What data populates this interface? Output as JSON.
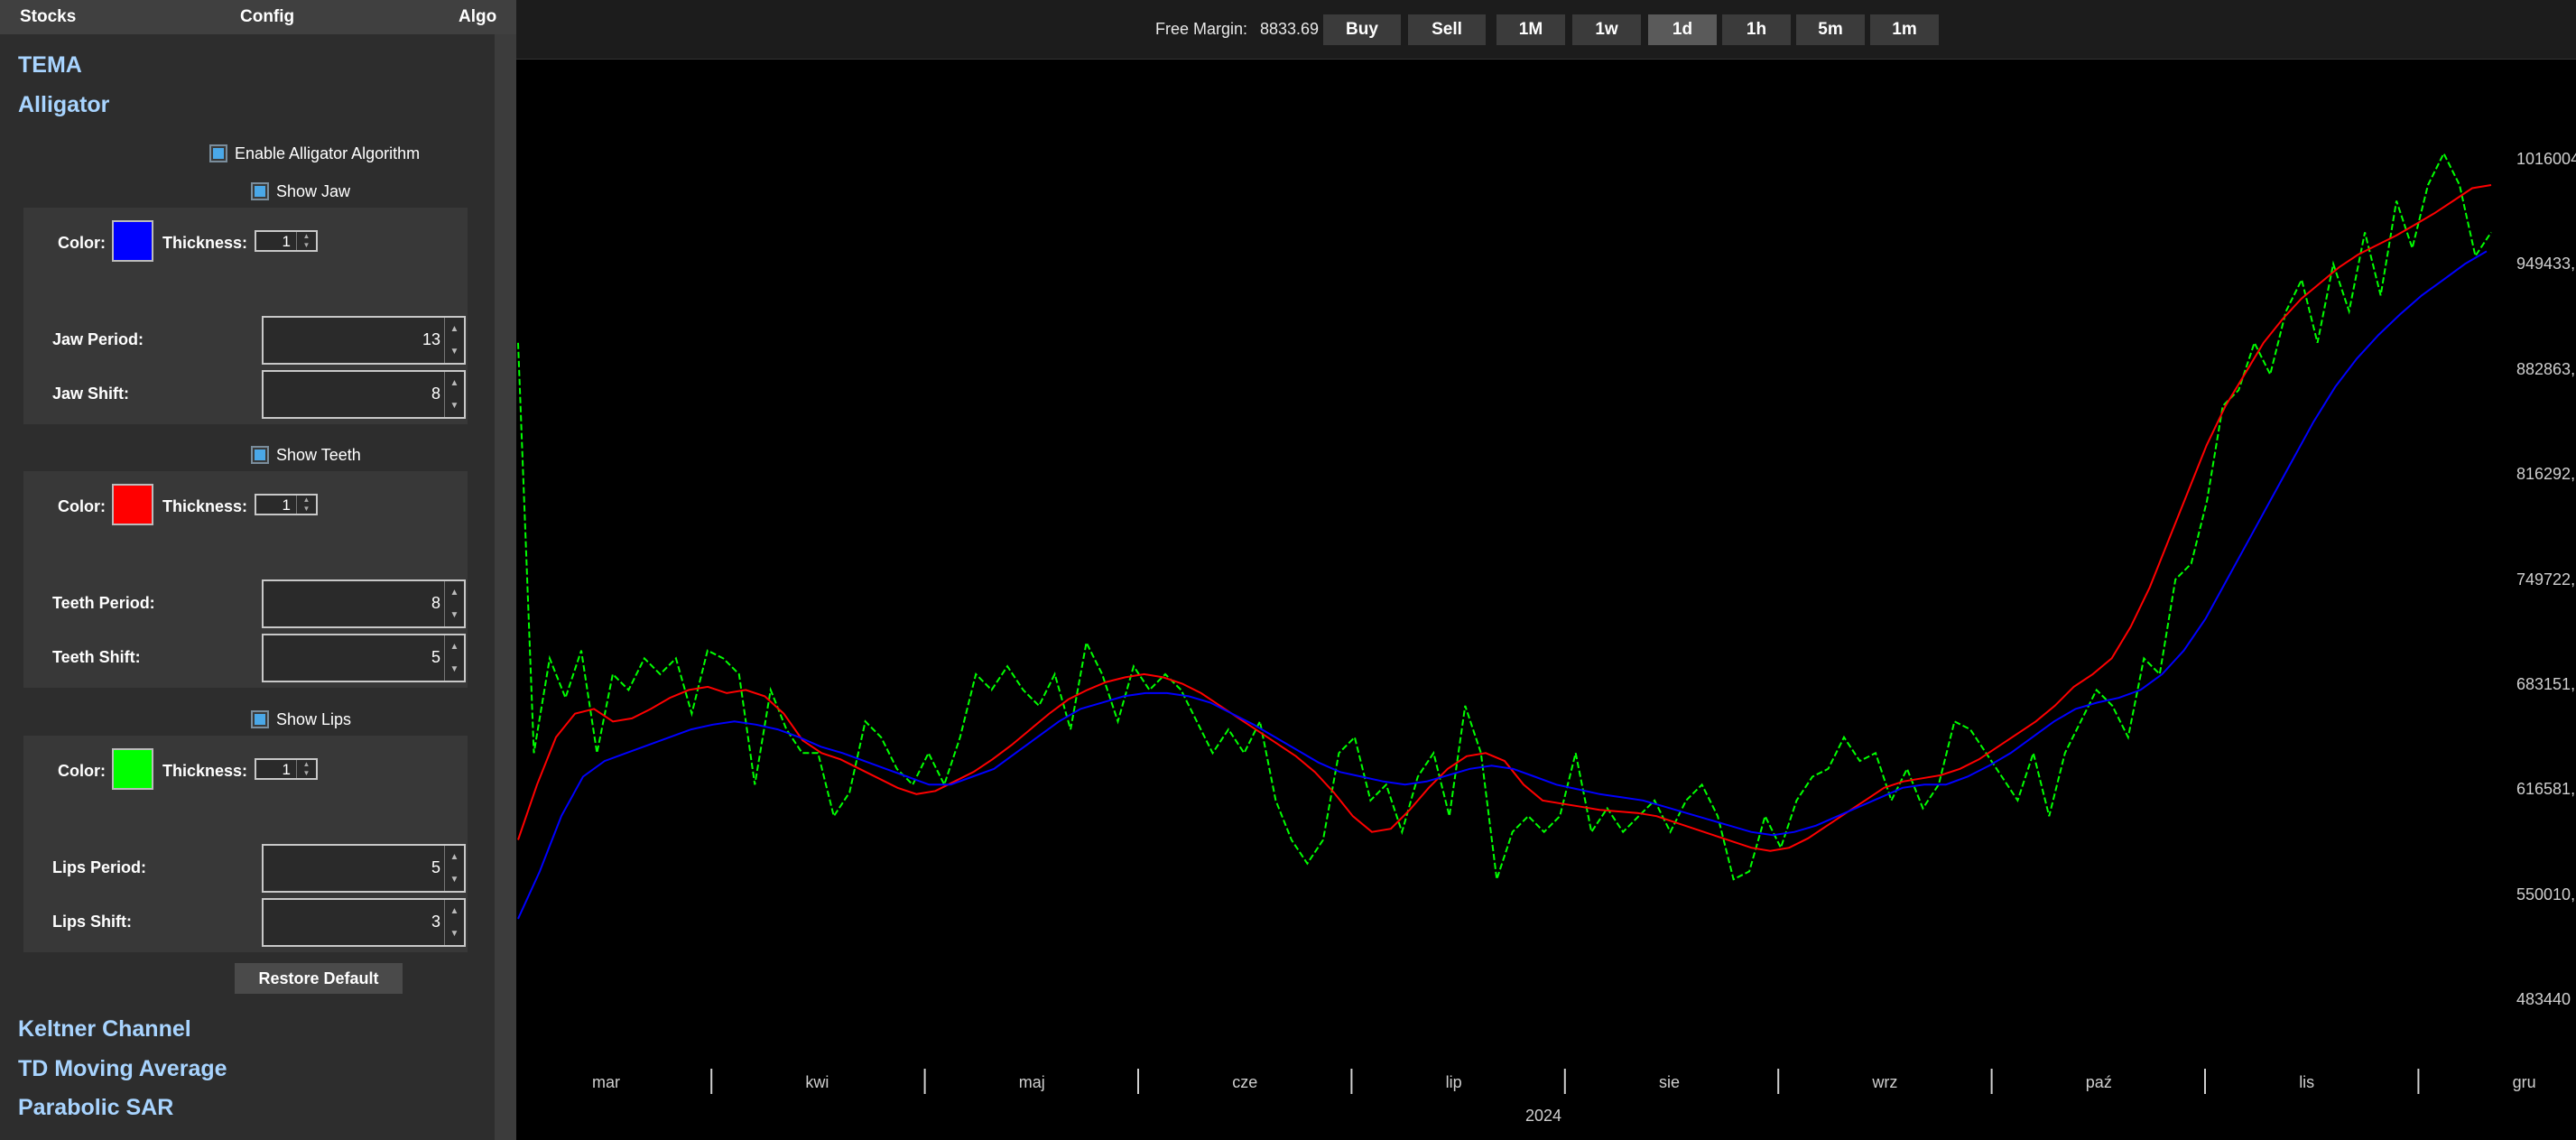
{
  "sidebar": {
    "tabs": [
      {
        "name": "stocks",
        "label": "Stocks"
      },
      {
        "name": "config",
        "label": "Config"
      },
      {
        "name": "algo",
        "label": "Algo"
      }
    ],
    "sections_top": [
      "TEMA",
      "Alligator"
    ],
    "enable_label": "Enable Alligator Algorithm",
    "groups": [
      {
        "show_label": "Show Jaw",
        "color_label": "Color:",
        "color": "#0000ff",
        "thickness_label": "Thickness:",
        "thickness": "1",
        "period_label": "Jaw Period:",
        "period": "13",
        "shift_label": "Jaw Shift:",
        "shift": "8"
      },
      {
        "show_label": "Show Teeth",
        "color_label": "Color:",
        "color": "#ff0000",
        "thickness_label": "Thickness:",
        "thickness": "1",
        "period_label": "Teeth Period:",
        "period": "8",
        "shift_label": "Teeth Shift:",
        "shift": "5"
      },
      {
        "show_label": "Show Lips",
        "color_label": "Color:",
        "color": "#00ff00",
        "thickness_label": "Thickness:",
        "thickness": "1",
        "period_label": "Lips Period:",
        "period": "5",
        "shift_label": "Lips Shift:",
        "shift": "3"
      }
    ],
    "restore_label": "Restore Default",
    "sections_bottom": [
      "Keltner Channel",
      "TD Moving Average",
      "Parabolic SAR"
    ]
  },
  "topbar": {
    "free_margin_label": "Free Margin:",
    "free_margin_value": "8833.69",
    "buy_label": "Buy",
    "sell_label": "Sell",
    "timeframes": [
      "1M",
      "1w",
      "1d",
      "1h",
      "5m",
      "1m"
    ],
    "active_timeframe": "1d"
  },
  "chart_data": {
    "type": "line",
    "y_ticks": [
      "1016004",
      "949433,",
      "882863,",
      "816292,",
      "749722,",
      "683151,",
      "616581,",
      "550010,",
      "483440"
    ],
    "ylim": [
      483440,
      1016004
    ],
    "x_ticks": [
      "mar",
      "kwi",
      "maj",
      "cze",
      "lip",
      "sie",
      "wrz",
      "paź",
      "lis",
      "gru"
    ],
    "xlabel": "2024",
    "grid": false,
    "series": [
      {
        "color": "#00ff00",
        "style": "dashed",
        "values": [
          900000,
          640000,
          700000,
          675000,
          705000,
          640000,
          690000,
          680000,
          700000,
          690000,
          700000,
          665000,
          705000,
          700000,
          690000,
          620000,
          680000,
          655000,
          640000,
          640000,
          600000,
          615000,
          660000,
          650000,
          630000,
          620000,
          640000,
          620000,
          650000,
          690000,
          680000,
          695000,
          680000,
          670000,
          690000,
          655000,
          710000,
          690000,
          660000,
          695000,
          680000,
          690000,
          680000,
          660000,
          640000,
          655000,
          640000,
          660000,
          610000,
          585000,
          570000,
          585000,
          640000,
          650000,
          610000,
          620000,
          590000,
          625000,
          640000,
          600000,
          670000,
          640000,
          560000,
          590000,
          600000,
          590000,
          600000,
          640000,
          590000,
          605000,
          590000,
          600000,
          610000,
          590000,
          610000,
          620000,
          600000,
          560000,
          565000,
          600000,
          580000,
          610000,
          625000,
          630000,
          650000,
          635000,
          640000,
          610000,
          630000,
          605000,
          620000,
          660000,
          655000,
          640000,
          625000,
          610000,
          640000,
          600000,
          640000,
          660000,
          680000,
          670000,
          650000,
          700000,
          690000,
          750000,
          760000,
          800000,
          860000,
          870000,
          900000,
          880000,
          920000,
          940000,
          900000,
          950000,
          920000,
          970000,
          930000,
          990000,
          960000,
          1000000,
          1020000,
          1000000,
          955000,
          970000
        ]
      },
      {
        "color": "#ff0000",
        "style": "solid",
        "values": [
          585000,
          620000,
          650000,
          665000,
          668000,
          660000,
          662000,
          668000,
          675000,
          680000,
          682000,
          678000,
          680000,
          676000,
          665000,
          648000,
          640000,
          636000,
          630000,
          624000,
          618000,
          614000,
          616000,
          622000,
          628000,
          636000,
          645000,
          655000,
          665000,
          674000,
          680000,
          685000,
          688000,
          690000,
          688000,
          684000,
          678000,
          670000,
          662000,
          654000,
          646000,
          638000,
          628000,
          615000,
          600000,
          590000,
          592000,
          604000,
          618000,
          630000,
          638000,
          640000,
          635000,
          620000,
          610000,
          608000,
          606000,
          604000,
          603000,
          602000,
          600000,
          596000,
          592000,
          588000,
          584000,
          580000,
          578000,
          580000,
          586000,
          594000,
          602000,
          610000,
          618000,
          622000,
          624000,
          626000,
          630000,
          636000,
          644000,
          652000,
          660000,
          670000,
          682000,
          690000,
          700000,
          720000,
          745000,
          775000,
          805000,
          835000,
          860000,
          880000,
          900000,
          915000,
          928000,
          938000,
          948000,
          956000,
          962000,
          968000,
          975000,
          982000,
          990000,
          998000,
          1000000
        ]
      },
      {
        "color": "#0000ff",
        "style": "solid",
        "values": [
          535000,
          565000,
          600000,
          625000,
          635000,
          640000,
          645000,
          650000,
          655000,
          658000,
          660000,
          658000,
          655000,
          650000,
          644000,
          640000,
          635000,
          630000,
          625000,
          620000,
          620000,
          625000,
          630000,
          640000,
          650000,
          660000,
          668000,
          672000,
          676000,
          678000,
          678000,
          676000,
          672000,
          665000,
          658000,
          650000,
          642000,
          634000,
          628000,
          625000,
          622000,
          620000,
          622000,
          626000,
          630000,
          632000,
          630000,
          625000,
          620000,
          617000,
          614000,
          612000,
          610000,
          606000,
          602000,
          598000,
          594000,
          590000,
          588000,
          590000,
          594000,
          600000,
          606000,
          612000,
          618000,
          620000,
          620000,
          625000,
          632000,
          640000,
          650000,
          660000,
          668000,
          672000,
          675000,
          680000,
          690000,
          705000,
          725000,
          750000,
          775000,
          800000,
          825000,
          850000,
          872000,
          890000,
          905000,
          918000,
          930000,
          940000,
          950000,
          958000
        ]
      }
    ]
  }
}
